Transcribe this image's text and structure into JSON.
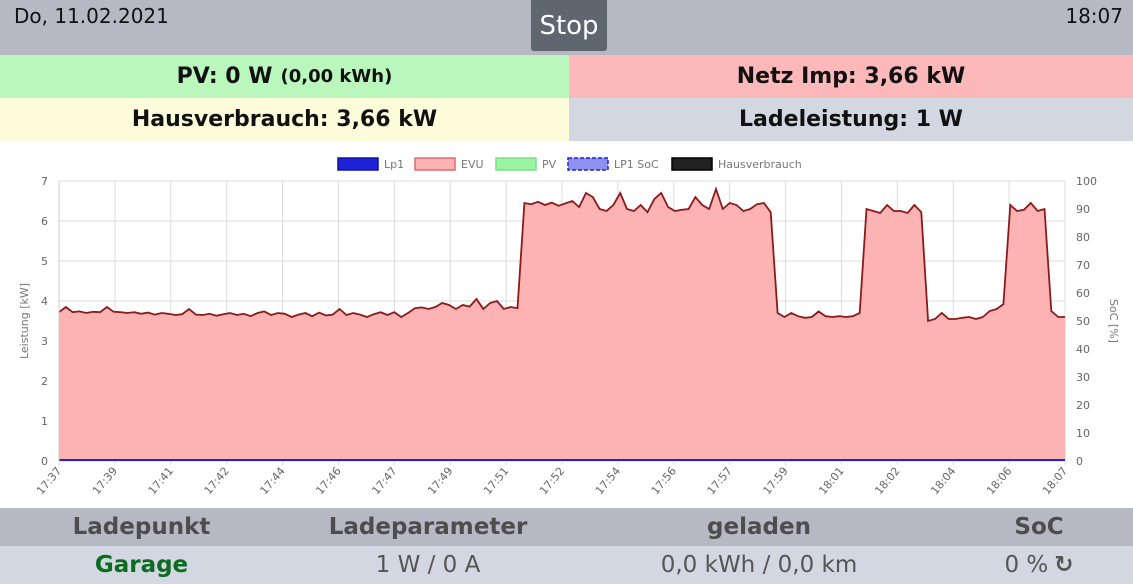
{
  "header": {
    "date": "Do, 11.02.2021",
    "time": "18:07",
    "stop_label": "Stop"
  },
  "tiles": {
    "pv": "PV: 0 W",
    "pv_sub": "(0,00 kWh)",
    "netz": "Netz Imp: 3,66 kW",
    "haus": "Hausverbrauch: 3,66 kW",
    "lade": "Ladeleistung: 1 W"
  },
  "colors": {
    "evu_fill": "#fdb2b4",
    "evu_line": "#8b1a1a",
    "lp1": "#1e22d8",
    "pv": "#9af5a0",
    "haus": "#222222"
  },
  "chart_data": {
    "type": "area",
    "legend": [
      "Lp1",
      "EVU",
      "PV",
      "LP1 SoC",
      "Hausverbrauch"
    ],
    "ylabel": "Leistung [kW]",
    "y2label": "SoC [%]",
    "ylim": [
      0,
      7
    ],
    "y2lim": [
      0,
      100
    ],
    "yticks": [
      "0",
      "1",
      "2",
      "3",
      "4",
      "5",
      "6",
      "7"
    ],
    "y2ticks": [
      "0",
      "10",
      "20",
      "30",
      "40",
      "50",
      "60",
      "70",
      "80",
      "90",
      "100"
    ],
    "xticks": [
      "17:37",
      "17:39",
      "17:41",
      "17:42",
      "17:44",
      "17:46",
      "17:47",
      "17:49",
      "17:51",
      "17:52",
      "17:54",
      "17:56",
      "17:57",
      "17:59",
      "18:01",
      "18:02",
      "18:04",
      "18:06",
      "18:07"
    ],
    "x_range": [
      "17:37",
      "18:07"
    ],
    "series": [
      {
        "name": "EVU",
        "values": [
          3.72,
          3.85,
          3.72,
          3.74,
          3.7,
          3.73,
          3.72,
          3.85,
          3.73,
          3.72,
          3.7,
          3.72,
          3.68,
          3.71,
          3.66,
          3.7,
          3.68,
          3.65,
          3.67,
          3.8,
          3.66,
          3.65,
          3.68,
          3.63,
          3.67,
          3.7,
          3.65,
          3.68,
          3.62,
          3.7,
          3.74,
          3.65,
          3.7,
          3.68,
          3.6,
          3.66,
          3.7,
          3.62,
          3.71,
          3.64,
          3.66,
          3.8,
          3.65,
          3.7,
          3.66,
          3.6,
          3.67,
          3.72,
          3.65,
          3.72,
          3.6,
          3.7,
          3.82,
          3.84,
          3.8,
          3.85,
          3.95,
          3.9,
          3.8,
          3.9,
          3.86,
          4.05,
          3.8,
          3.95,
          4.0,
          3.8,
          3.85,
          3.82,
          6.45,
          6.42,
          6.48,
          6.4,
          6.46,
          6.38,
          6.44,
          6.5,
          6.35,
          6.7,
          6.6,
          6.3,
          6.25,
          6.4,
          6.7,
          6.3,
          6.25,
          6.4,
          6.22,
          6.55,
          6.7,
          6.35,
          6.25,
          6.28,
          6.3,
          6.6,
          6.4,
          6.3,
          6.8,
          6.3,
          6.45,
          6.4,
          6.25,
          6.3,
          6.42,
          6.45,
          6.22,
          3.7,
          3.6,
          3.7,
          3.62,
          3.58,
          3.6,
          3.74,
          3.62,
          3.6,
          3.62,
          3.6,
          3.62,
          3.7,
          6.3,
          6.25,
          6.2,
          6.4,
          6.25,
          6.25,
          6.2,
          6.4,
          6.22,
          3.5,
          3.55,
          3.7,
          3.55,
          3.55,
          3.58,
          3.6,
          3.55,
          3.6,
          3.75,
          3.8,
          3.92,
          6.4,
          6.25,
          6.28,
          6.45,
          6.25,
          6.3,
          3.75,
          3.6,
          3.6
        ]
      },
      {
        "name": "Lp1",
        "values": [
          0,
          0
        ]
      },
      {
        "name": "Hausverbrauch",
        "values": [
          0,
          0
        ]
      }
    ],
    "grid": true,
    "legend_position": "top"
  },
  "table": {
    "headers": [
      "Ladepunkt",
      "Ladeparameter",
      "geladen",
      "SoC"
    ],
    "row": {
      "ladepunkt": "Garage",
      "ladeparameter": "1 W / 0 A",
      "geladen": "0,0 kWh / 0,0 km",
      "soc": "0 %"
    }
  }
}
